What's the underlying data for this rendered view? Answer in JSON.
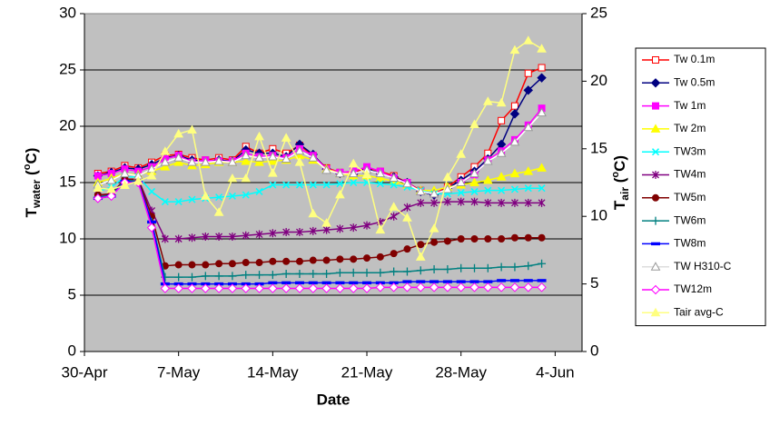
{
  "chart_data": {
    "type": "line",
    "x_label": "Date",
    "y_label_parts": [
      "T",
      "water",
      " (",
      "o",
      "C)"
    ],
    "y2_label_parts": [
      "T",
      "air",
      " (",
      "o",
      "C)"
    ],
    "x": [
      "1-May",
      "2-May",
      "3-May",
      "4-May",
      "5-May",
      "6-May",
      "7-May",
      "8-May",
      "9-May",
      "10-May",
      "11-May",
      "12-May",
      "13-May",
      "14-May",
      "15-May",
      "16-May",
      "17-May",
      "18-May",
      "19-May",
      "20-May",
      "21-May",
      "22-May",
      "23-May",
      "24-May",
      "25-May",
      "26-May",
      "27-May",
      "28-May",
      "29-May",
      "30-May",
      "31-May",
      "1-Jun",
      "2-Jun",
      "3-Jun"
    ],
    "xlim": [
      "30-Apr",
      "6-Jun"
    ],
    "xticks": [
      "30-Apr",
      "7-May",
      "14-May",
      "21-May",
      "28-May",
      "4-Jun"
    ],
    "ylim": [
      0,
      30
    ],
    "yticks": [
      0,
      5,
      10,
      15,
      20,
      25,
      30
    ],
    "y2lim": [
      0,
      25
    ],
    "y2ticks": [
      0,
      5,
      10,
      15,
      20,
      25
    ],
    "grid": true,
    "legend": "right",
    "plot_background": "#c0c0c0",
    "series": [
      {
        "name": "Tw 0.1m",
        "color": "#ff0000",
        "marker": "square-open",
        "values": [
          15.8,
          16.0,
          16.5,
          16.3,
          16.8,
          17.4,
          17.5,
          17.2,
          17.0,
          17.2,
          17.0,
          18.2,
          17.6,
          18.0,
          17.6,
          18.3,
          17.4,
          16.3,
          15.9,
          15.9,
          16.3,
          16.0,
          15.6,
          15.0,
          14.3,
          14.0,
          14.6,
          15.5,
          16.4,
          17.6,
          20.5,
          21.8,
          24.7,
          25.2
        ]
      },
      {
        "name": "Tw 0.5m",
        "color": "#000080",
        "marker": "diamond",
        "values": [
          15.6,
          15.9,
          16.3,
          16.2,
          16.6,
          17.2,
          17.4,
          17.0,
          16.9,
          17.0,
          16.9,
          17.9,
          17.6,
          17.6,
          17.3,
          18.4,
          17.5,
          16.2,
          15.8,
          15.7,
          16.2,
          15.8,
          15.5,
          15.0,
          14.2,
          13.9,
          14.5,
          15.2,
          16.0,
          17.1,
          18.4,
          21.1,
          23.2,
          24.3
        ]
      },
      {
        "name": "Tw 1m",
        "color": "#ff00ff",
        "marker": "square",
        "values": [
          15.6,
          15.8,
          16.2,
          16.0,
          16.4,
          17.1,
          17.4,
          16.8,
          17.0,
          16.9,
          16.9,
          17.6,
          17.3,
          17.4,
          17.2,
          18.0,
          17.4,
          16.2,
          15.9,
          16.0,
          16.4,
          16.0,
          15.4,
          15.0,
          14.2,
          14.0,
          14.4,
          15.0,
          15.7,
          17.0,
          17.8,
          18.8,
          20.1,
          21.6
        ]
      },
      {
        "name": "Tw 2m",
        "color": "#ffff00",
        "marker": "triangle",
        "values": [
          15.0,
          15.4,
          15.8,
          15.7,
          16.0,
          16.4,
          16.8,
          16.5,
          16.6,
          16.8,
          16.8,
          16.9,
          16.8,
          16.9,
          17.0,
          17.4,
          17.0,
          16.2,
          15.8,
          15.6,
          15.6,
          15.4,
          15.1,
          14.8,
          14.3,
          14.3,
          14.6,
          14.8,
          15.0,
          15.2,
          15.5,
          15.8,
          16.0,
          16.3
        ]
      },
      {
        "name": "TW3m",
        "color": "#00ffff",
        "marker": "x",
        "values": [
          14.2,
          14.6,
          15.5,
          15.5,
          14.2,
          13.3,
          13.3,
          13.5,
          13.6,
          13.7,
          13.8,
          13.9,
          14.2,
          14.8,
          14.8,
          14.8,
          14.8,
          14.8,
          14.9,
          15.0,
          15.0,
          14.9,
          14.8,
          14.6,
          14.3,
          14.0,
          14.0,
          14.1,
          14.2,
          14.3,
          14.3,
          14.4,
          14.5,
          14.5
        ]
      },
      {
        "name": "TW4m",
        "color": "#800080",
        "marker": "star",
        "values": [
          13.8,
          14.0,
          15.2,
          15.3,
          12.5,
          10.0,
          10.0,
          10.1,
          10.2,
          10.2,
          10.2,
          10.3,
          10.4,
          10.5,
          10.6,
          10.6,
          10.7,
          10.8,
          10.9,
          11.0,
          11.2,
          11.5,
          12.0,
          12.8,
          13.2,
          13.2,
          13.3,
          13.3,
          13.3,
          13.2,
          13.2,
          13.2,
          13.2,
          13.2
        ]
      },
      {
        "name": "TW5m",
        "color": "#800000",
        "marker": "circle",
        "values": [
          13.9,
          14.0,
          15.3,
          15.3,
          12.0,
          7.6,
          7.7,
          7.7,
          7.7,
          7.8,
          7.8,
          7.9,
          7.9,
          8.0,
          8.0,
          8.0,
          8.1,
          8.1,
          8.2,
          8.2,
          8.3,
          8.4,
          8.7,
          9.1,
          9.5,
          9.7,
          9.8,
          10.0,
          10.0,
          10.0,
          10.0,
          10.1,
          10.1,
          10.1
        ]
      },
      {
        "name": "TW6m",
        "color": "#008080",
        "marker": "plus",
        "values": [
          13.7,
          13.9,
          15.2,
          15.1,
          11.5,
          6.6,
          6.6,
          6.6,
          6.7,
          6.7,
          6.7,
          6.8,
          6.8,
          6.8,
          6.9,
          6.9,
          6.9,
          6.9,
          7.0,
          7.0,
          7.0,
          7.0,
          7.1,
          7.1,
          7.2,
          7.3,
          7.3,
          7.4,
          7.4,
          7.4,
          7.5,
          7.5,
          7.6,
          7.8
        ]
      },
      {
        "name": "TW8m",
        "color": "#0000ff",
        "marker": "dash",
        "values": [
          13.6,
          13.8,
          15.1,
          15.0,
          11.5,
          6.0,
          6.0,
          6.0,
          6.0,
          6.0,
          6.0,
          6.0,
          6.0,
          6.1,
          6.1,
          6.1,
          6.1,
          6.1,
          6.1,
          6.1,
          6.1,
          6.1,
          6.1,
          6.2,
          6.2,
          6.2,
          6.2,
          6.2,
          6.2,
          6.2,
          6.3,
          6.3,
          6.3,
          6.3
        ]
      },
      {
        "name": "TW H310-C",
        "color": "#ffffff",
        "marker": "triangle-open",
        "values": [
          14.8,
          15.2,
          15.8,
          15.6,
          16.2,
          16.8,
          17.2,
          16.8,
          16.8,
          16.9,
          16.8,
          17.4,
          17.2,
          17.3,
          17.1,
          17.8,
          17.2,
          16.1,
          15.8,
          15.8,
          16.1,
          15.8,
          15.4,
          14.9,
          14.2,
          14.0,
          14.4,
          15.0,
          15.8,
          16.9,
          17.6,
          18.6,
          19.9,
          21.2
        ]
      },
      {
        "name": "TW12m",
        "color": "#ff00ff",
        "marker": "diamond-open",
        "values": [
          13.6,
          13.8,
          15.0,
          15.0,
          11.0,
          5.6,
          5.6,
          5.6,
          5.6,
          5.6,
          5.6,
          5.6,
          5.6,
          5.6,
          5.6,
          5.6,
          5.6,
          5.6,
          5.6,
          5.6,
          5.6,
          5.7,
          5.7,
          5.7,
          5.7,
          5.7,
          5.7,
          5.7,
          5.7,
          5.7,
          5.7,
          5.7,
          5.7,
          5.7
        ]
      },
      {
        "name": "Tair avg-C",
        "color": "#ffff80",
        "marker": "triangle",
        "axis": "y2",
        "values": [
          12.1,
          12.0,
          12.3,
          12.6,
          13.0,
          14.8,
          16.1,
          16.4,
          11.5,
          10.3,
          12.8,
          12.8,
          15.9,
          13.2,
          15.8,
          14.0,
          10.2,
          9.5,
          11.6,
          13.9,
          13.1,
          9.0,
          10.7,
          9.9,
          7.0,
          9.1,
          12.9,
          14.6,
          16.8,
          18.5,
          18.4,
          22.3,
          23.0,
          22.4
        ]
      }
    ]
  }
}
